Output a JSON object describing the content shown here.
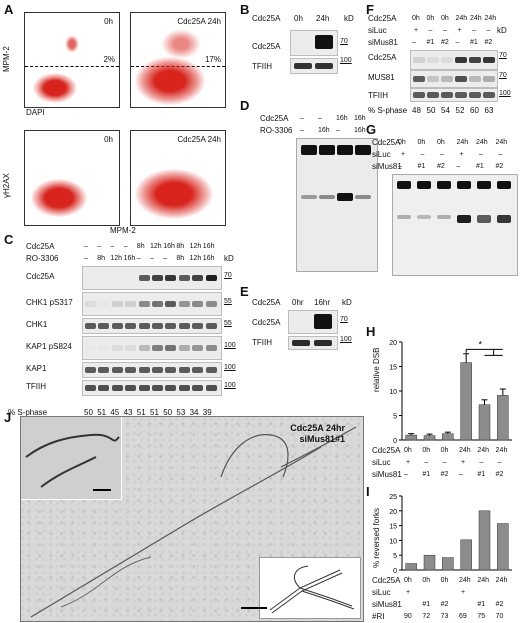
{
  "panels": {
    "A": "A",
    "B": "B",
    "C": "C",
    "D": "D",
    "E": "E",
    "F": "F",
    "G": "G",
    "H": "H",
    "I": "I",
    "J": "J"
  },
  "A": {
    "top_left": {
      "label": "0h",
      "pct": "2%"
    },
    "top_right": {
      "label": "Cdc25A 24h",
      "pct": "17%"
    },
    "bottom_left": {
      "label": "0h"
    },
    "bottom_right": {
      "label": "Cdc25A 24h"
    },
    "ylabel_top": "MPM-2",
    "xlabel_top": "DAPI",
    "ylabel_bottom": "γH2AX",
    "xlabel_bottom": "MPM-2"
  },
  "B": {
    "row_label": "Cdc25A",
    "lanes": [
      "0h",
      "24h"
    ],
    "kd": "kD",
    "bands": [
      "Cdc25A",
      "TFIIH"
    ],
    "markers": [
      "70",
      "100"
    ]
  },
  "C": {
    "row1_label": "Cdc25A",
    "row1": [
      "–",
      "–",
      "–",
      "–",
      "8h",
      "12h",
      "16h",
      "8h",
      "12h",
      "16h"
    ],
    "row2_label": "RO-3306",
    "row2": [
      "–",
      "8h",
      "12h",
      "16h",
      "–",
      "–",
      "–",
      "8h",
      "12h",
      "16h"
    ],
    "kd": "kD",
    "bands": [
      "Cdc25A",
      "CHK1 pS317",
      "CHK1",
      "KAP1 pS824",
      "KAP1",
      "TFIIH"
    ],
    "markers": [
      "70",
      "55",
      "55",
      "100",
      "100",
      "100"
    ],
    "sphase_label": "% S-phase",
    "sphase": [
      "50",
      "51",
      "45",
      "43",
      "51",
      "51",
      "50",
      "53",
      "34",
      "39"
    ]
  },
  "D": {
    "row1_label": "Cdc25A",
    "row1": [
      "–",
      "–",
      "16h",
      "16h"
    ],
    "row2_label": "RO-3306",
    "row2": [
      "–",
      "16h",
      "–",
      "16h"
    ]
  },
  "E": {
    "row_label": "Cdc25A",
    "lanes": [
      "0hr",
      "16hr"
    ],
    "kd": "kD",
    "bands": [
      "Cdc25A",
      "TFIIH"
    ],
    "markers": [
      "70",
      "100"
    ]
  },
  "F": {
    "row1_label": "Cdc25A",
    "row1": [
      "0h",
      "0h",
      "0h",
      "24h",
      "24h",
      "24h"
    ],
    "row2_label": "siLuc",
    "row2": [
      "+",
      "–",
      "–",
      "+",
      "–",
      "–"
    ],
    "row3_label": "siMus81",
    "row3": [
      "–",
      "#1",
      "#2",
      "–",
      "#1",
      "#2"
    ],
    "kd": "kD",
    "bands": [
      "Cdc25A",
      "MUS81",
      "TFIIH"
    ],
    "markers": [
      "70",
      "70",
      "100"
    ],
    "sphase_label": "% S-phase",
    "sphase": [
      "48",
      "50",
      "54",
      "52",
      "60",
      "63"
    ]
  },
  "G": {
    "row1_label": "Cdc25A",
    "row1": [
      "0h",
      "0h",
      "0h",
      "24h",
      "24h",
      "24h"
    ],
    "row2_label": "siLuc",
    "row2": [
      "+",
      "–",
      "–",
      "+",
      "–",
      "–"
    ],
    "row3_label": "siMus81",
    "row3": [
      "–",
      "#1",
      "#2",
      "–",
      "#1",
      "#2"
    ]
  },
  "H": {
    "ylabel": "relative DSB",
    "yticks": [
      "0",
      "5",
      "10",
      "15",
      "20"
    ],
    "sig": "*",
    "row1_label": "Cdc25A",
    "row1": [
      "0h",
      "0h",
      "0h",
      "24h",
      "24h",
      "24h"
    ],
    "row2_label": "siLuc",
    "row2": [
      "+",
      "–",
      "–",
      "+",
      "–",
      "–"
    ],
    "row3_label": "siMus81",
    "row3": [
      "–",
      "#1",
      "#2",
      "–",
      "#1",
      "#2"
    ]
  },
  "I": {
    "ylabel": "% reversed forks",
    "yticks": [
      "0",
      "5",
      "10",
      "15",
      "20",
      "25"
    ],
    "row1_label": "Cdc25A",
    "row1": [
      "0h",
      "0h",
      "0h",
      "24h",
      "24h",
      "24h"
    ],
    "row2_label": "siLuc",
    "row2": [
      "+",
      "",
      "",
      "+",
      "",
      ""
    ],
    "row3_label": "siMus81",
    "row3": [
      "",
      "#1",
      "#2",
      "",
      "#1",
      "#2"
    ],
    "row4_label": "#RI",
    "row4": [
      "90",
      "72",
      "73",
      "69",
      "75",
      "70"
    ]
  },
  "J": {
    "caption_line1": "Cdc25A 24hr",
    "caption_line2": "siMus81#1"
  },
  "chart_data": [
    {
      "type": "bar",
      "panel": "H",
      "categories": [
        "1",
        "2",
        "3",
        "4",
        "5",
        "6"
      ],
      "values": [
        1.0,
        0.9,
        1.3,
        15.8,
        7.2,
        9.1
      ],
      "errors": [
        0.3,
        0.3,
        0.3,
        1.8,
        1.0,
        1.3
      ],
      "ylabel": "relative DSB",
      "ylim": [
        0,
        20
      ]
    },
    {
      "type": "bar",
      "panel": "I",
      "categories": [
        "1",
        "2",
        "3",
        "4",
        "5",
        "6"
      ],
      "values": [
        2.2,
        5.0,
        4.2,
        10.2,
        20.0,
        15.7
      ],
      "ylabel": "% reversed forks",
      "ylim": [
        0,
        25
      ]
    }
  ]
}
